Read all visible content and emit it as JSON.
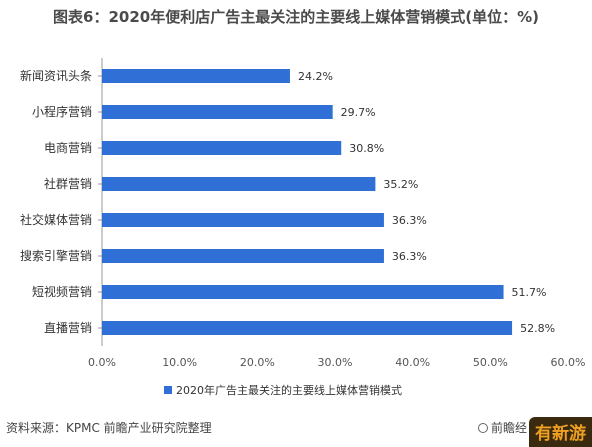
{
  "title": "图表6：2020年便利店广告主最关注的主要线上媒体营销模式(单位：%)",
  "source": "资料来源：KPMC 前瞻产业研究院整理",
  "brand": "前瞻经",
  "badge": "有新游",
  "colors": {
    "bar": "#2f6fd6",
    "axis": "#999999",
    "text": "#333333",
    "tick": "#555555"
  },
  "chart_data": {
    "type": "bar",
    "orientation": "horizontal",
    "title": "图表6：2020年便利店广告主最关注的主要线上媒体营销模式(单位：%)",
    "categories": [
      "新闻资讯头条",
      "小程序营销",
      "电商营销",
      "社群营销",
      "社交媒体营销",
      "搜索引擎营销",
      "短视频营销",
      "直播营销"
    ],
    "series": [
      {
        "name": "2020年广告主最关注的主要线上媒体营销模式",
        "values": [
          24.2,
          29.7,
          30.8,
          35.2,
          36.3,
          36.3,
          51.7,
          52.8
        ],
        "labels": [
          "24.2%",
          "29.7%",
          "30.8%",
          "35.2%",
          "36.3%",
          "36.3%",
          "51.7%",
          "52.8%"
        ]
      }
    ],
    "xlim": [
      0,
      60
    ],
    "xticks": [
      0,
      10,
      20,
      30,
      40,
      50,
      60
    ],
    "xtick_labels": [
      "0.0%",
      "10.0%",
      "20.0%",
      "30.0%",
      "40.0%",
      "50.0%",
      "60.0%"
    ],
    "grid": false,
    "legend_position": "bottom"
  }
}
